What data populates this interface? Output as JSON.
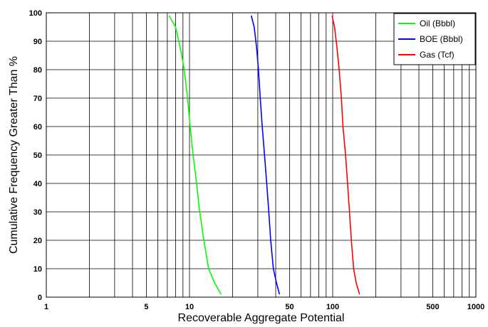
{
  "chart_data": {
    "type": "line",
    "title": "",
    "xlabel": "Recoverable Aggregate Potential",
    "ylabel": "Cumulative Frequency Greater Than %",
    "x_scale": "log",
    "xlim": [
      1,
      1000
    ],
    "ylim": [
      0,
      100
    ],
    "x_ticks": [
      1,
      5,
      10,
      50,
      100,
      500,
      1000
    ],
    "x_tick_labels": [
      "1",
      "5",
      "10",
      "50",
      "100",
      "500",
      "1000"
    ],
    "y_ticks": [
      0,
      10,
      20,
      30,
      40,
      50,
      60,
      70,
      80,
      90,
      100
    ],
    "y_tick_labels": [
      "0",
      "10",
      "20",
      "30",
      "40",
      "50",
      "60",
      "70",
      "80",
      "90",
      "100"
    ],
    "grid": true,
    "legend_position": "top-right",
    "series": [
      {
        "name": "Oil (Bbbl)",
        "color": "#00ff00",
        "x": [
          7.2,
          8.0,
          8.6,
          9.2,
          9.7,
          10.1,
          10.6,
          11.2,
          11.8,
          12.6,
          13.6,
          15.0,
          16.6
        ],
        "y": [
          99,
          95,
          88,
          80,
          70,
          60,
          50,
          40,
          30,
          20,
          10,
          5,
          1
        ]
      },
      {
        "name": "BOE (Bbbl)",
        "color": "#0000ff",
        "x": [
          27.0,
          28.3,
          29.4,
          30.3,
          31.2,
          32.2,
          33.4,
          34.6,
          35.8,
          36.9,
          38.5,
          40.5,
          42.5
        ],
        "y": [
          99,
          95,
          88,
          80,
          70,
          60,
          50,
          40,
          30,
          20,
          10,
          5,
          1
        ]
      },
      {
        "name": "Gas (Tcf)",
        "color": "#ff0000",
        "x": [
          99,
          103,
          107,
          111,
          115,
          118,
          123,
          127,
          131,
          135,
          140,
          146,
          154
        ],
        "y": [
          99,
          95,
          88,
          80,
          70,
          60,
          50,
          40,
          30,
          20,
          10,
          5,
          1
        ]
      }
    ]
  }
}
